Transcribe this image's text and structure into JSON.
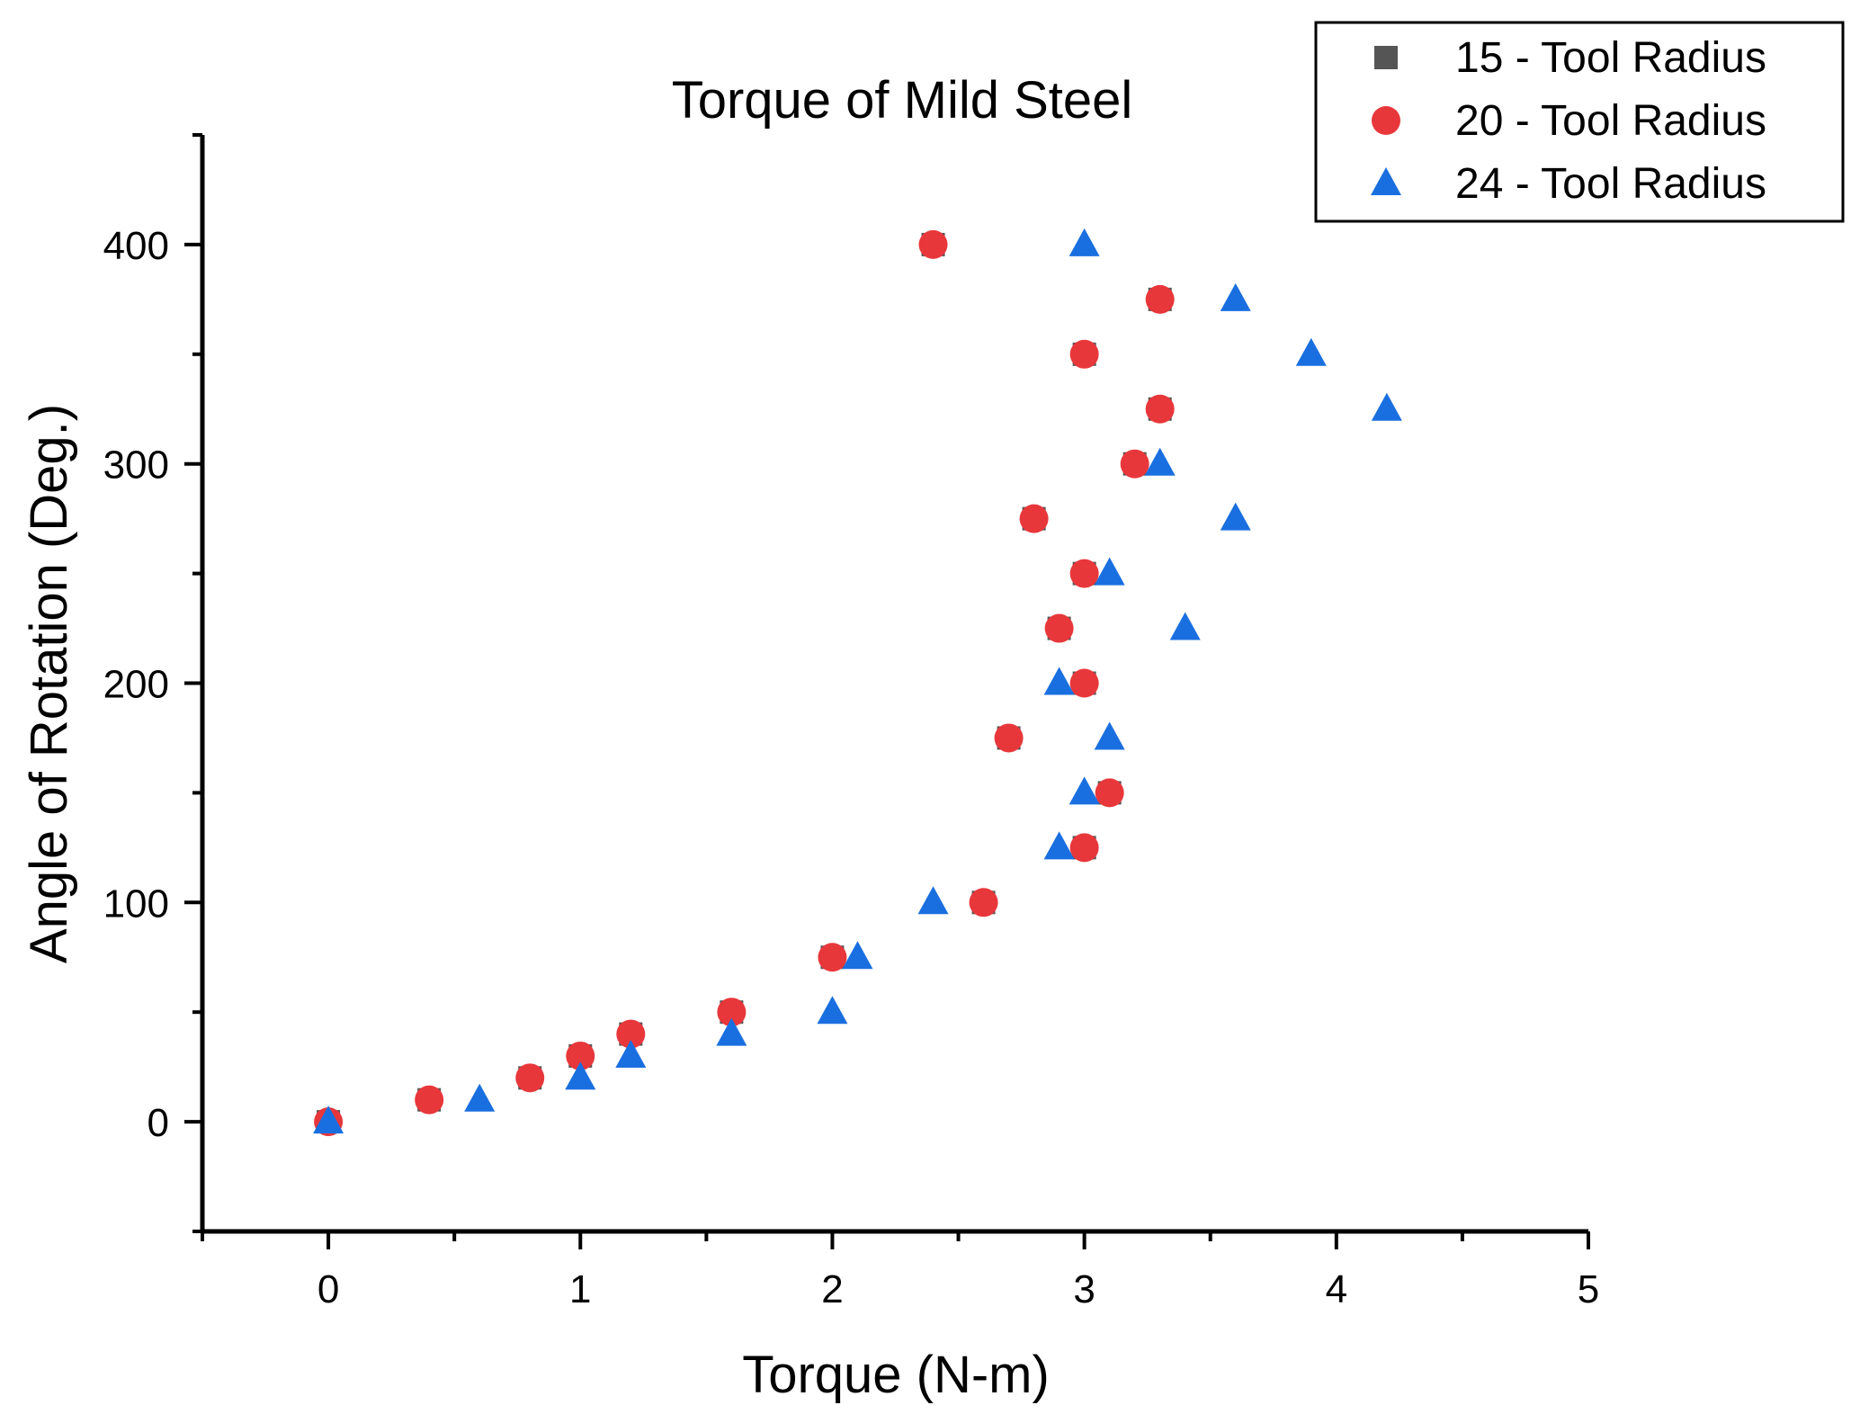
{
  "chart_data": {
    "type": "scatter",
    "title": "Torque of Mild Steel",
    "xlabel": "Torque (N-m)",
    "ylabel": "Angle of Rotation (Deg.)",
    "xlim": [
      -0.5,
      5
    ],
    "ylim": [
      -50,
      450
    ],
    "x_ticks": [
      0,
      1,
      2,
      3,
      4,
      5
    ],
    "x_tick_labels": [
      "0",
      "1",
      "2",
      "3",
      "4",
      "5"
    ],
    "x_minor_ticks": [
      -0.5,
      0.5,
      1.5,
      2.5,
      3.5,
      4.5
    ],
    "y_ticks": [
      0,
      100,
      200,
      300,
      400
    ],
    "y_tick_labels": [
      "0",
      "100",
      "200",
      "300",
      "400"
    ],
    "y_minor_ticks": [
      -50,
      50,
      150,
      250,
      350,
      450
    ],
    "grid": false,
    "legend_position": "top-right",
    "series": [
      {
        "name": "15 - Tool Radius",
        "marker": "square",
        "color": "#555555",
        "points": [
          [
            0,
            0
          ],
          [
            0.4,
            10
          ],
          [
            0.8,
            20
          ],
          [
            1.0,
            30
          ],
          [
            1.2,
            40
          ],
          [
            1.6,
            50
          ],
          [
            2.0,
            75
          ],
          [
            2.6,
            100
          ],
          [
            3.0,
            125
          ],
          [
            3.1,
            150
          ],
          [
            2.7,
            175
          ],
          [
            3.0,
            200
          ],
          [
            2.9,
            225
          ],
          [
            3.0,
            250
          ],
          [
            2.8,
            275
          ],
          [
            3.2,
            300
          ],
          [
            3.3,
            325
          ],
          [
            3.0,
            350
          ],
          [
            3.3,
            375
          ],
          [
            2.4,
            400
          ]
        ]
      },
      {
        "name": "20 - Tool Radius",
        "marker": "circle",
        "color": "#e8373b",
        "points": [
          [
            0,
            0
          ],
          [
            0.4,
            10
          ],
          [
            0.8,
            20
          ],
          [
            1.0,
            30
          ],
          [
            1.2,
            40
          ],
          [
            1.6,
            50
          ],
          [
            2.0,
            75
          ],
          [
            2.6,
            100
          ],
          [
            3.0,
            125
          ],
          [
            3.1,
            150
          ],
          [
            2.7,
            175
          ],
          [
            3.0,
            200
          ],
          [
            2.9,
            225
          ],
          [
            3.0,
            250
          ],
          [
            2.8,
            275
          ],
          [
            3.2,
            300
          ],
          [
            3.3,
            325
          ],
          [
            3.0,
            350
          ],
          [
            3.3,
            375
          ],
          [
            2.4,
            400
          ]
        ]
      },
      {
        "name": "24 - Tool Radius",
        "marker": "triangle",
        "color": "#1a6fe0",
        "points": [
          [
            0,
            0
          ],
          [
            0.6,
            10
          ],
          [
            1.0,
            20
          ],
          [
            1.2,
            30
          ],
          [
            1.6,
            40
          ],
          [
            2.0,
            50
          ],
          [
            2.1,
            75
          ],
          [
            2.4,
            100
          ],
          [
            2.9,
            125
          ],
          [
            3.0,
            150
          ],
          [
            3.1,
            175
          ],
          [
            2.9,
            200
          ],
          [
            3.4,
            225
          ],
          [
            3.1,
            250
          ],
          [
            3.6,
            275
          ],
          [
            3.3,
            300
          ],
          [
            4.2,
            325
          ],
          [
            3.9,
            350
          ],
          [
            3.6,
            375
          ],
          [
            3.0,
            400
          ]
        ]
      }
    ]
  }
}
